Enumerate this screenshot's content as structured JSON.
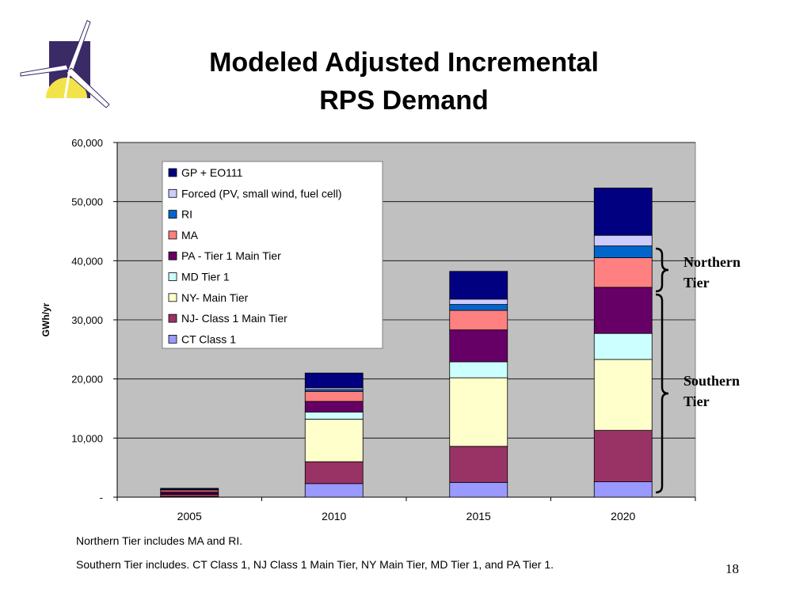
{
  "title_line1": "Modeled Adjusted Incremental",
  "title_line2": "RPS Demand",
  "notes": {
    "northern": "Northern Tier includes MA and RI.",
    "southern": "Southern Tier includes.  CT Class 1, NJ Class 1 Main Tier, NY Main Tier, MD Tier 1, and PA Tier 1."
  },
  "page_number": "18",
  "brackets": {
    "northern_line1": "Northern",
    "northern_line2": "Tier",
    "southern_line1": "Southern",
    "southern_line2": "Tier"
  },
  "logo": {
    "icon": "wind-turbine-logo",
    "colors": [
      "#3a2a66",
      "#f2e34a",
      "#ffffff"
    ]
  },
  "chart_data": {
    "type": "bar",
    "stacked": true,
    "ylabel": "GWh/yr",
    "xlabel": "",
    "ylim": [
      0,
      60000
    ],
    "yticks": [
      0,
      10000,
      20000,
      30000,
      40000,
      50000,
      60000
    ],
    "ytick_labels": [
      "-",
      "10,000",
      "20,000",
      "30,000",
      "40,000",
      "50,000",
      "60,000"
    ],
    "categories": [
      "2005",
      "2010",
      "2015",
      "2020"
    ],
    "legend_position": "top-left inside plot",
    "plot_background": "#c0c0c0",
    "grid": true,
    "series": [
      {
        "name": "CT Class 1",
        "color": "#9999ff",
        "values": [
          100,
          2300,
          2500,
          2600
        ]
      },
      {
        "name": "NJ- Class 1 Main Tier",
        "color": "#993366",
        "values": [
          400,
          3700,
          6100,
          8700
        ]
      },
      {
        "name": "NY- Main Tier",
        "color": "#ffffcc",
        "values": [
          100,
          7200,
          11600,
          12000
        ]
      },
      {
        "name": "MD Tier 1",
        "color": "#ccffff",
        "values": [
          0,
          1200,
          2700,
          4400
        ]
      },
      {
        "name": "PA - Tier 1 Main Tier",
        "color": "#660066",
        "values": [
          300,
          1800,
          5400,
          7800
        ]
      },
      {
        "name": "MA",
        "color": "#ff8080",
        "values": [
          300,
          1700,
          3300,
          5000
        ]
      },
      {
        "name": "RI",
        "color": "#0066cc",
        "values": [
          50,
          300,
          1000,
          2000
        ]
      },
      {
        "name": "Forced (PV, small wind, fuel cell)",
        "color": "#ccccff",
        "values": [
          50,
          300,
          900,
          1800
        ]
      },
      {
        "name": "GP + EO111",
        "color": "#000080",
        "values": [
          200,
          2500,
          4700,
          8000
        ]
      }
    ],
    "legend_order": [
      "GP + EO111",
      "Forced (PV, small wind, fuel cell)",
      "RI",
      "MA",
      "PA - Tier 1 Main Tier",
      "MD Tier 1",
      "NY- Main Tier",
      "NJ- Class 1 Main Tier",
      "CT Class 1"
    ]
  }
}
